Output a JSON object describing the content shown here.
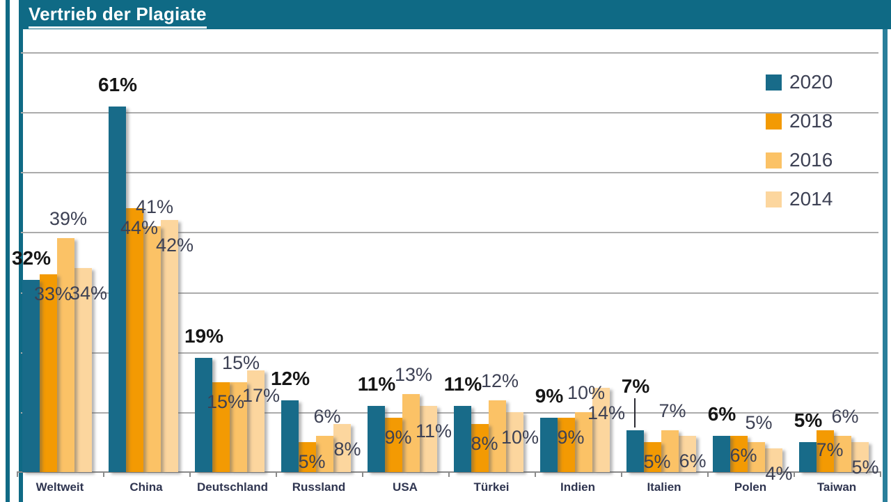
{
  "chart_data": {
    "type": "bar",
    "title": "Vertrieb der Plagiate",
    "unit": "%",
    "categories": [
      "Weltweit",
      "China",
      "Deutschland",
      "Russland",
      "USA",
      "Türkei",
      "Indien",
      "Italien",
      "Polen",
      "Taiwan"
    ],
    "series": [
      {
        "name": "2020",
        "color": "#186b89",
        "values": [
          32,
          61,
          19,
          12,
          11,
          11,
          9,
          7,
          6,
          5
        ]
      },
      {
        "name": "2018",
        "color": "#f39a03",
        "values": [
          33,
          44,
          15,
          5,
          9,
          8,
          9,
          5,
          6,
          7
        ]
      },
      {
        "name": "2016",
        "color": "#fbc266",
        "values": [
          39,
          41,
          15,
          6,
          13,
          12,
          10,
          7,
          5,
          6
        ]
      },
      {
        "name": "2014",
        "color": "#fcd69e",
        "values": [
          34,
          42,
          17,
          8,
          11,
          10,
          14,
          6,
          4,
          5
        ]
      }
    ],
    "ylim": [
      0,
      70
    ],
    "gridline_values": [
      10,
      20,
      30,
      40,
      50,
      60,
      70
    ],
    "grid": true,
    "legend_position": "top-right",
    "annotations": [
      {
        "category": "Italien",
        "series": "2020",
        "leader_line": true
      }
    ]
  },
  "colors": {
    "header": "#0f6a85",
    "panel_border": "#0f6a85",
    "gridline": "#ababab",
    "axis": "#8a8a8a",
    "value_label": "#3d4154",
    "value_label_bold": "#161616",
    "category_label": "#2f3550",
    "legend_text": "#3d4154",
    "title_text": "#ffffff"
  }
}
